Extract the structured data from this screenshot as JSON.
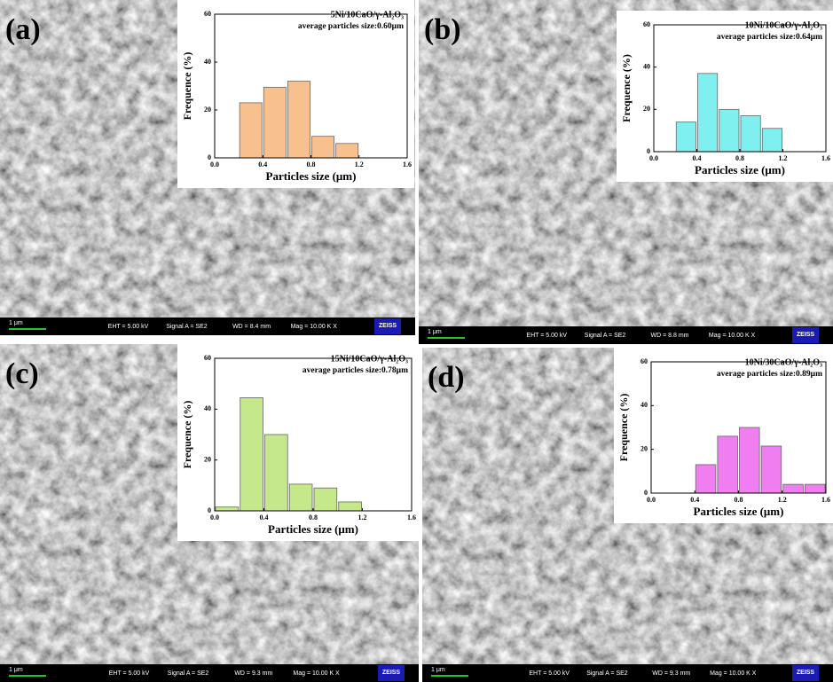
{
  "chart_data": [
    {
      "type": "histogram",
      "title": "5Ni/10CaO/γ-Al₂O₃",
      "subtitle": "average particles size:0.60μm",
      "x_label": "Particles size (μm)",
      "y_label": "Frequence (%)",
      "bins": [
        0.2,
        0.4,
        0.6,
        0.8,
        1.0,
        1.2
      ],
      "values": [
        23,
        29.5,
        32,
        9,
        6
      ],
      "color": "#f9c08f",
      "xlim": [
        0,
        1.6
      ],
      "xticks": [
        {
          "value": 0,
          "label": "0.0"
        },
        0.4,
        0.8,
        1.2,
        1.6
      ],
      "ylim": [
        0,
        60
      ],
      "yticks": [
        0,
        20,
        40,
        60
      ]
    },
    {
      "type": "histogram",
      "title": "10Ni/10CaO/γ-Al₂O₃",
      "subtitle": "average particles size:0.64μm",
      "x_label": "Particles size (μm)",
      "y_label": "Frequence (%)",
      "bins": [
        0.2,
        0.4,
        0.6,
        0.8,
        1.0,
        1.2
      ],
      "values": [
        14,
        37,
        20,
        17,
        11
      ],
      "color": "#7ff0ef",
      "xlim": [
        0,
        1.6
      ],
      "xticks": [
        {
          "value": 0,
          "label": "0.0"
        },
        0.4,
        0.8,
        1.2,
        1.6
      ],
      "ylim": [
        0,
        60
      ],
      "yticks": [
        0,
        20,
        40,
        60
      ]
    },
    {
      "type": "histogram",
      "title": "15Ni/10CaO/γ-Al₂O₃",
      "subtitle": "average particles size:0.78μm",
      "x_label": "Particles size (μm)",
      "y_label": "Frequence (%)",
      "bins": [
        0.0,
        0.2,
        0.4,
        0.6,
        0.8,
        1.0,
        1.2
      ],
      "values": [
        1.5,
        44.5,
        30,
        10.5,
        9,
        3.5
      ],
      "color": "#c4e88a",
      "xlim": [
        0,
        1.6
      ],
      "xticks": [
        {
          "value": 0,
          "label": "0.0"
        },
        0.4,
        0.8,
        1.2,
        1.6
      ],
      "ylim": [
        0,
        60
      ],
      "yticks": [
        0,
        20,
        40,
        60
      ]
    },
    {
      "type": "histogram",
      "title": "10Ni/30CaO/γ-Al₂O₃",
      "subtitle": "average particles size:0.89μm",
      "x_label": "Particles size (μm)",
      "y_label": "Frequence (%)",
      "bins": [
        0.4,
        0.6,
        0.8,
        1.0,
        1.2,
        1.4,
        1.6
      ],
      "values": [
        13,
        26,
        30,
        21.5,
        4,
        4
      ],
      "color": "#f07ef0",
      "xlim": [
        0,
        1.6
      ],
      "xticks": [
        {
          "value": 0,
          "label": "0.0"
        },
        0.4,
        0.8,
        1.2,
        1.6
      ],
      "ylim": [
        0,
        60
      ],
      "yticks": [
        0,
        20,
        40,
        60
      ]
    }
  ],
  "panels": [
    {
      "label": "(a)",
      "scale_bar": "1 μm",
      "eht": "EHT = 5.00 kV",
      "signal": "Signal A = SE2",
      "wd": "WD = 8.4 mm",
      "mag": "Mag = 10.00 K X",
      "brand": "ZEISS"
    },
    {
      "label": "(b)",
      "scale_bar": "1 μm",
      "eht": "EHT = 5.00 kV",
      "signal": "Signal A = SE2",
      "wd": "WD = 8.8 mm",
      "mag": "Mag = 10.00 K X",
      "brand": "ZEISS"
    },
    {
      "label": "(c)",
      "scale_bar": "1 μm",
      "eht": "EHT = 5.00 kV",
      "signal": "Signal A = SE2",
      "wd": "WD = 9.3 mm",
      "mag": "Mag = 10.00 K X",
      "brand": "ZEISS"
    },
    {
      "label": "(d)",
      "scale_bar": "1 μm",
      "eht": "EHT = 5.00 kV",
      "signal": "Signal A = SE2",
      "wd": "WD = 9.3 mm",
      "mag": "Mag = 10.00 K X",
      "brand": "ZEISS"
    }
  ]
}
